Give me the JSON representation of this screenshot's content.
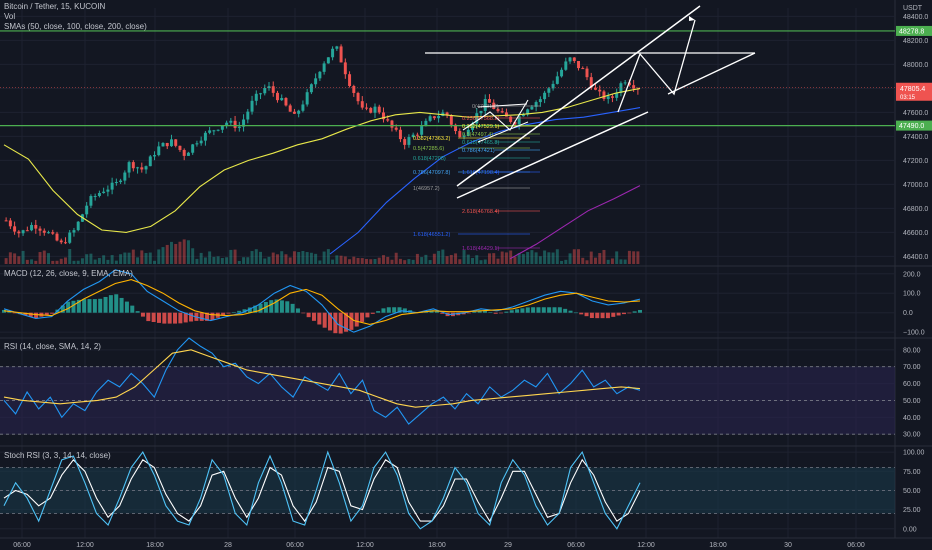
{
  "header": {
    "symbol_line": "Bitcoin / Tether, 15, KUCOIN",
    "vol_label": "Vol",
    "smas_label": "SMAs (50, close, 100, close, 200, close)"
  },
  "currency_label": "USDT",
  "colors": {
    "background": "#131722",
    "grid": "#1e2230",
    "up": "#26a69a",
    "down": "#ef5350",
    "horizontal_levels": "#4caf50",
    "sma50": "#e8e84a",
    "sma100": "#2962ff",
    "sma200": "#9c27b0",
    "macd": "#2196f3",
    "signal": "#ffb300",
    "rsi": "#2196f3",
    "rsi_ma": "#ffd54f",
    "stoch_k": "#4fc3f7",
    "stoch_d": "#ffffff",
    "drawing": "#ffffff"
  },
  "time_axis": {
    "labels": [
      "06:00",
      "12:00",
      "18:00",
      "28",
      "06:00",
      "12:00",
      "18:00",
      "29",
      "06:00",
      "12:00",
      "18:00",
      "30",
      "06:00"
    ]
  },
  "chart_data": [
    {
      "type": "candlestick",
      "title": "Bitcoin / Tether, 15, KUCOIN",
      "ylim": [
        46320,
        48470
      ],
      "y_ticks": [
        46400,
        46600,
        46800,
        47000,
        47200,
        47400,
        47600,
        47800,
        48000,
        48200,
        48400
      ],
      "horizontal_levels": [
        {
          "value": 48278.8,
          "label": "48278.8"
        },
        {
          "value": 47490.0,
          "label": "47490.0"
        }
      ],
      "last_price": {
        "value": 47805.4,
        "label": "47805.4",
        "countdown": "03:15"
      },
      "price_path": [
        46700,
        46590,
        46670,
        46600,
        46500,
        46620,
        46860,
        46950,
        47000,
        47180,
        47120,
        47300,
        47360,
        47250,
        47380,
        47450,
        47520,
        47480,
        47700,
        47820,
        47700,
        47560,
        47760,
        48000,
        48150,
        47850,
        47600,
        47640,
        47480,
        47350,
        47440,
        47560,
        47600,
        47380,
        47540,
        47700,
        47580,
        47520,
        47650,
        47720,
        47880,
        48050,
        47950,
        47760,
        47700,
        47880,
        47805
      ],
      "sma_series": [
        {
          "name": "SMA 50",
          "path": [
            47330,
            47210,
            46950,
            46750,
            46620,
            46600,
            46650,
            46780,
            46980,
            47120,
            47200,
            47260,
            47330,
            47380,
            47460,
            47530,
            47580,
            47600,
            47580,
            47560,
            47570,
            47580,
            47600,
            47640,
            47700,
            47760,
            47800
          ]
        },
        {
          "name": "SMA 100",
          "path": [
            46420,
            46600,
            46850,
            47050,
            47230,
            47350,
            47440,
            47500,
            47540,
            47560,
            47600,
            47640
          ]
        },
        {
          "name": "SMA 200",
          "path": [
            46380,
            46500,
            46640,
            46780,
            46880,
            46990
          ]
        }
      ],
      "fibonacci": {
        "left_set": [
          {
            "label": "0.382(47363.2)",
            "color": "#ffeb3b"
          },
          {
            "label": "0.5(47285.6)",
            "color": "#8bc34a"
          },
          {
            "label": "0.618(47208)",
            "color": "#26a69a"
          },
          {
            "label": "0.786(47097.8)",
            "color": "#42a5f5"
          },
          {
            "label": "1(46957.2)",
            "color": "#9e9e9e"
          },
          {
            "label": "1.618(46551.2)",
            "color": "#2962ff"
          }
        ],
        "right_set": [
          {
            "label": "0(47631.2)",
            "color": "#9e9e9e"
          },
          {
            "label": "0.236(47568.2)",
            "color": "#ef5350"
          },
          {
            "label": "0.382(47529.1)",
            "color": "#ffeb3b"
          },
          {
            "label": "0.5(47497.4)",
            "color": "#8bc34a"
          },
          {
            "label": "0.618(47465.8)",
            "color": "#26a69a"
          },
          {
            "label": "0.786(47421)",
            "color": "#42a5f5"
          },
          {
            "label": "1.618(47198.4)",
            "color": "#2962ff"
          },
          {
            "label": "2.618(46768.4)",
            "color": "#ef5350"
          },
          {
            "label": "1.618(46429.1)",
            "color": "#9c27b0"
          }
        ]
      }
    },
    {
      "type": "line",
      "title": "MACD (12, 26, close, 9, EMA, EMA)",
      "ylim": [
        -130,
        240
      ],
      "y_ticks": [
        -100,
        0,
        100,
        200
      ],
      "y_tick_labels": [
        "−100.0",
        "0.0",
        "100.0",
        "200.0"
      ],
      "series": [
        {
          "name": "MACD",
          "path": [
            20,
            -5,
            -30,
            -20,
            60,
            120,
            160,
            220,
            200,
            110,
            60,
            10,
            -20,
            -40,
            -20,
            0,
            40,
            100,
            140,
            110,
            40,
            -60,
            -100,
            -70,
            -20,
            10,
            0,
            20,
            -10,
            0,
            20,
            10,
            30,
            60,
            90,
            110,
            100,
            60,
            40,
            50,
            70
          ]
        },
        {
          "name": "Signal",
          "path": [
            10,
            0,
            -10,
            -15,
            20,
            70,
            110,
            150,
            170,
            140,
            100,
            50,
            10,
            -10,
            -15,
            -10,
            10,
            50,
            100,
            120,
            90,
            20,
            -40,
            -60,
            -40,
            -10,
            0,
            10,
            5,
            5,
            10,
            15,
            20,
            40,
            70,
            90,
            100,
            80,
            60,
            55,
            60
          ]
        }
      ]
    },
    {
      "type": "line",
      "title": "RSI (14, close, SMA, 14, 2)",
      "ylim": [
        23,
        87
      ],
      "y_ticks": [
        30,
        40,
        50,
        60,
        70,
        80
      ],
      "bands": [
        70,
        50,
        30
      ],
      "series": [
        {
          "name": "RSI",
          "path": [
            50,
            42,
            55,
            45,
            52,
            40,
            48,
            44,
            55,
            62,
            58,
            66,
            60,
            52,
            68,
            80,
            88,
            82,
            78,
            70,
            72,
            64,
            60,
            66,
            58,
            52,
            64,
            60,
            56,
            66,
            54,
            62,
            44,
            40,
            46,
            36,
            42,
            48,
            52,
            45,
            54,
            48,
            58,
            52,
            56,
            62,
            58,
            66,
            54,
            60,
            68,
            58,
            62,
            54,
            58,
            56
          ]
        },
        {
          "name": "RSI-based MA",
          "path": [
            52,
            50,
            49,
            48,
            49,
            50,
            52,
            58,
            68,
            78,
            80,
            76,
            72,
            68,
            66,
            64,
            62,
            60,
            58,
            56,
            52,
            48,
            46,
            47,
            48,
            50,
            51,
            52,
            53,
            54,
            55,
            56,
            57,
            58,
            57
          ]
        }
      ]
    },
    {
      "type": "line",
      "title": "Stoch RSI (3, 3, 14, 14, close)",
      "ylim": [
        -12,
        108
      ],
      "y_ticks": [
        0,
        25,
        50,
        75,
        100
      ],
      "y_tick_labels": [
        "0.00",
        "25.00",
        "50.00",
        "75.00",
        "100.00"
      ],
      "bands": [
        80,
        20
      ],
      "series": [
        {
          "name": "K",
          "path": [
            30,
            60,
            40,
            10,
            50,
            90,
            95,
            60,
            20,
            5,
            40,
            80,
            100,
            70,
            30,
            10,
            5,
            40,
            90,
            70,
            20,
            5,
            60,
            95,
            60,
            10,
            5,
            50,
            100,
            60,
            10,
            30,
            80,
            100,
            70,
            20,
            0,
            10,
            40,
            80,
            60,
            20,
            5,
            60,
            90,
            70,
            30,
            5,
            20,
            80,
            100,
            60,
            20,
            0,
            30,
            60
          ]
        },
        {
          "name": "D",
          "path": [
            40,
            50,
            45,
            30,
            40,
            70,
            90,
            75,
            40,
            15,
            30,
            65,
            90,
            80,
            45,
            20,
            10,
            30,
            70,
            75,
            40,
            15,
            40,
            80,
            70,
            30,
            10,
            35,
            80,
            75,
            30,
            25,
            65,
            90,
            80,
            35,
            10,
            10,
            30,
            65,
            65,
            35,
            10,
            40,
            75,
            75,
            45,
            15,
            20,
            60,
            90,
            70,
            35,
            10,
            20,
            50
          ]
        }
      ]
    }
  ]
}
